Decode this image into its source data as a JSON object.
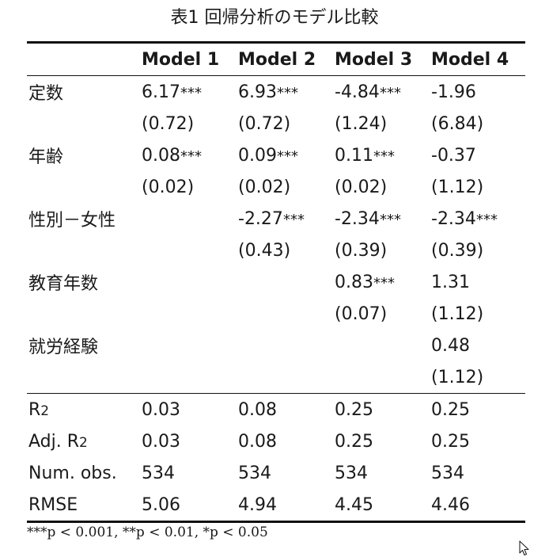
{
  "caption": "表1 回帰分析のモデル比較",
  "columns": [
    "",
    "Model 1",
    "Model 2",
    "Model 3",
    "Model 4"
  ],
  "coefficients": [
    {
      "label": "定数",
      "estimates": [
        {
          "value": "6.17",
          "stars": "***"
        },
        {
          "value": "6.93",
          "stars": "***"
        },
        {
          "value": "-4.84",
          "stars": "***"
        },
        {
          "value": "-1.96",
          "stars": ""
        }
      ],
      "se": [
        "(0.72)",
        "(0.72)",
        "(1.24)",
        "(6.84)"
      ]
    },
    {
      "label": "年齢",
      "estimates": [
        {
          "value": "0.08",
          "stars": "***"
        },
        {
          "value": "0.09",
          "stars": "***"
        },
        {
          "value": "0.11",
          "stars": "***"
        },
        {
          "value": "-0.37",
          "stars": ""
        }
      ],
      "se": [
        "(0.02)",
        "(0.02)",
        "(0.02)",
        "(1.12)"
      ]
    },
    {
      "label": "性別－女性",
      "estimates": [
        {
          "value": "",
          "stars": ""
        },
        {
          "value": "-2.27",
          "stars": "***"
        },
        {
          "value": "-2.34",
          "stars": "***"
        },
        {
          "value": "-2.34",
          "stars": "***"
        }
      ],
      "se": [
        "",
        "(0.43)",
        "(0.39)",
        "(0.39)"
      ]
    },
    {
      "label": "教育年数",
      "estimates": [
        {
          "value": "",
          "stars": ""
        },
        {
          "value": "",
          "stars": ""
        },
        {
          "value": "0.83",
          "stars": "***"
        },
        {
          "value": "1.31",
          "stars": ""
        }
      ],
      "se": [
        "",
        "",
        "(0.07)",
        "(1.12)"
      ]
    },
    {
      "label": "就労経験",
      "estimates": [
        {
          "value": "",
          "stars": ""
        },
        {
          "value": "",
          "stars": ""
        },
        {
          "value": "",
          "stars": ""
        },
        {
          "value": "0.48",
          "stars": ""
        }
      ],
      "se": [
        "",
        "",
        "",
        "(1.12)"
      ]
    }
  ],
  "gof": [
    {
      "label": "R",
      "sub": "2",
      "values": [
        "0.03",
        "0.08",
        "0.25",
        "0.25"
      ]
    },
    {
      "label": "Adj. R",
      "sub": "2",
      "values": [
        "0.03",
        "0.08",
        "0.25",
        "0.25"
      ]
    },
    {
      "label": "Num. obs.",
      "sub": "",
      "values": [
        "534",
        "534",
        "534",
        "534"
      ]
    },
    {
      "label": "RMSE",
      "sub": "",
      "values": [
        "5.06",
        "4.94",
        "4.45",
        "4.46"
      ]
    }
  ],
  "note": "***p < 0.001, **p < 0.01, *p < 0.05",
  "cursor_icon": "mouse-pointer-icon"
}
